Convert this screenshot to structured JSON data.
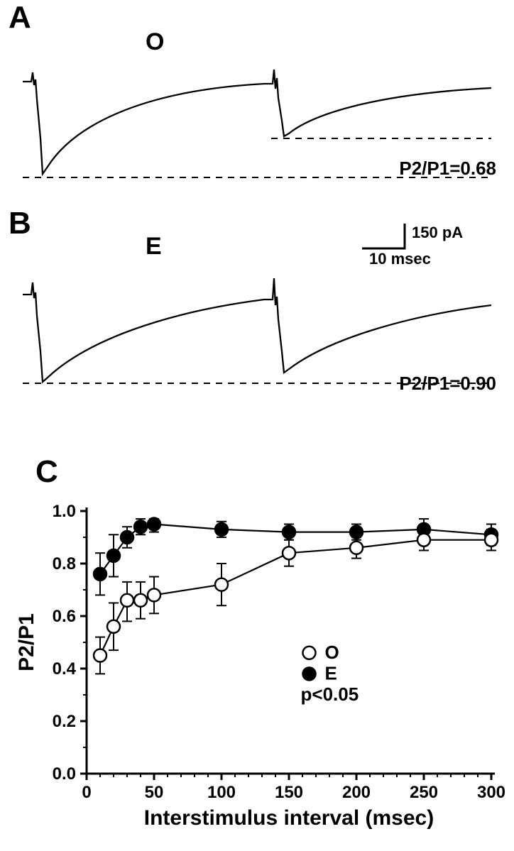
{
  "panelA": {
    "label": "A",
    "condition": "O",
    "ratio_text": "P2/P1=0.68",
    "trace_color": "#000000",
    "dashed_color": "#000000",
    "line_width": 2.2
  },
  "panelB": {
    "label": "B",
    "condition": "E",
    "ratio_text": "P2/P1=0.90",
    "trace_color": "#000000",
    "dashed_color": "#000000",
    "line_width": 2.2,
    "scale_y_text": "150 pA",
    "scale_x_text": "10 msec"
  },
  "panelC": {
    "label": "C",
    "xlabel": "Interstimulus interval (msec)",
    "ylabel": "P2/P1",
    "xlim": [
      0,
      300
    ],
    "ylim": [
      0.0,
      1.0
    ],
    "xticks": [
      0,
      50,
      100,
      150,
      200,
      250,
      300
    ],
    "yticks": [
      0.0,
      0.2,
      0.4,
      0.6,
      0.8,
      1.0
    ],
    "axis_color": "#000000",
    "axis_width": 3,
    "tick_len": 9,
    "marker_radius": 9,
    "marker_stroke_width": 2.5,
    "line_width": 2.2,
    "error_width": 2,
    "error_cap": 7,
    "seriesO": {
      "label": "O",
      "fill": "#ffffff",
      "stroke": "#000000",
      "points": [
        {
          "x": 10,
          "y": 0.45,
          "elo": 0.07,
          "ehi": 0.07
        },
        {
          "x": 20,
          "y": 0.56,
          "elo": 0.09,
          "ehi": 0.09
        },
        {
          "x": 30,
          "y": 0.66,
          "elo": 0.08,
          "ehi": 0.07
        },
        {
          "x": 40,
          "y": 0.66,
          "elo": 0.07,
          "ehi": 0.07
        },
        {
          "x": 50,
          "y": 0.68,
          "elo": 0.07,
          "ehi": 0.07
        },
        {
          "x": 100,
          "y": 0.72,
          "elo": 0.08,
          "ehi": 0.08
        },
        {
          "x": 150,
          "y": 0.84,
          "elo": 0.05,
          "ehi": 0.05
        },
        {
          "x": 200,
          "y": 0.86,
          "elo": 0.04,
          "ehi": 0.04
        },
        {
          "x": 250,
          "y": 0.89,
          "elo": 0.04,
          "ehi": 0.04
        },
        {
          "x": 300,
          "y": 0.89,
          "elo": 0.04,
          "ehi": 0.04
        }
      ]
    },
    "seriesE": {
      "label": "E",
      "fill": "#000000",
      "stroke": "#000000",
      "points": [
        {
          "x": 10,
          "y": 0.76,
          "elo": 0.08,
          "ehi": 0.08
        },
        {
          "x": 20,
          "y": 0.83,
          "elo": 0.08,
          "ehi": 0.08
        },
        {
          "x": 30,
          "y": 0.9,
          "elo": 0.04,
          "ehi": 0.04
        },
        {
          "x": 40,
          "y": 0.94,
          "elo": 0.03,
          "ehi": 0.03
        },
        {
          "x": 50,
          "y": 0.95,
          "elo": 0.03,
          "ehi": 0.02
        },
        {
          "x": 100,
          "y": 0.93,
          "elo": 0.03,
          "ehi": 0.03
        },
        {
          "x": 150,
          "y": 0.92,
          "elo": 0.03,
          "ehi": 0.03
        },
        {
          "x": 200,
          "y": 0.92,
          "elo": 0.03,
          "ehi": 0.03
        },
        {
          "x": 250,
          "y": 0.93,
          "elo": 0.04,
          "ehi": 0.04
        },
        {
          "x": 300,
          "y": 0.91,
          "elo": 0.04,
          "ehi": 0.04
        }
      ]
    },
    "legend": {
      "O": "O",
      "E": "E",
      "p": "p<0.05"
    }
  }
}
